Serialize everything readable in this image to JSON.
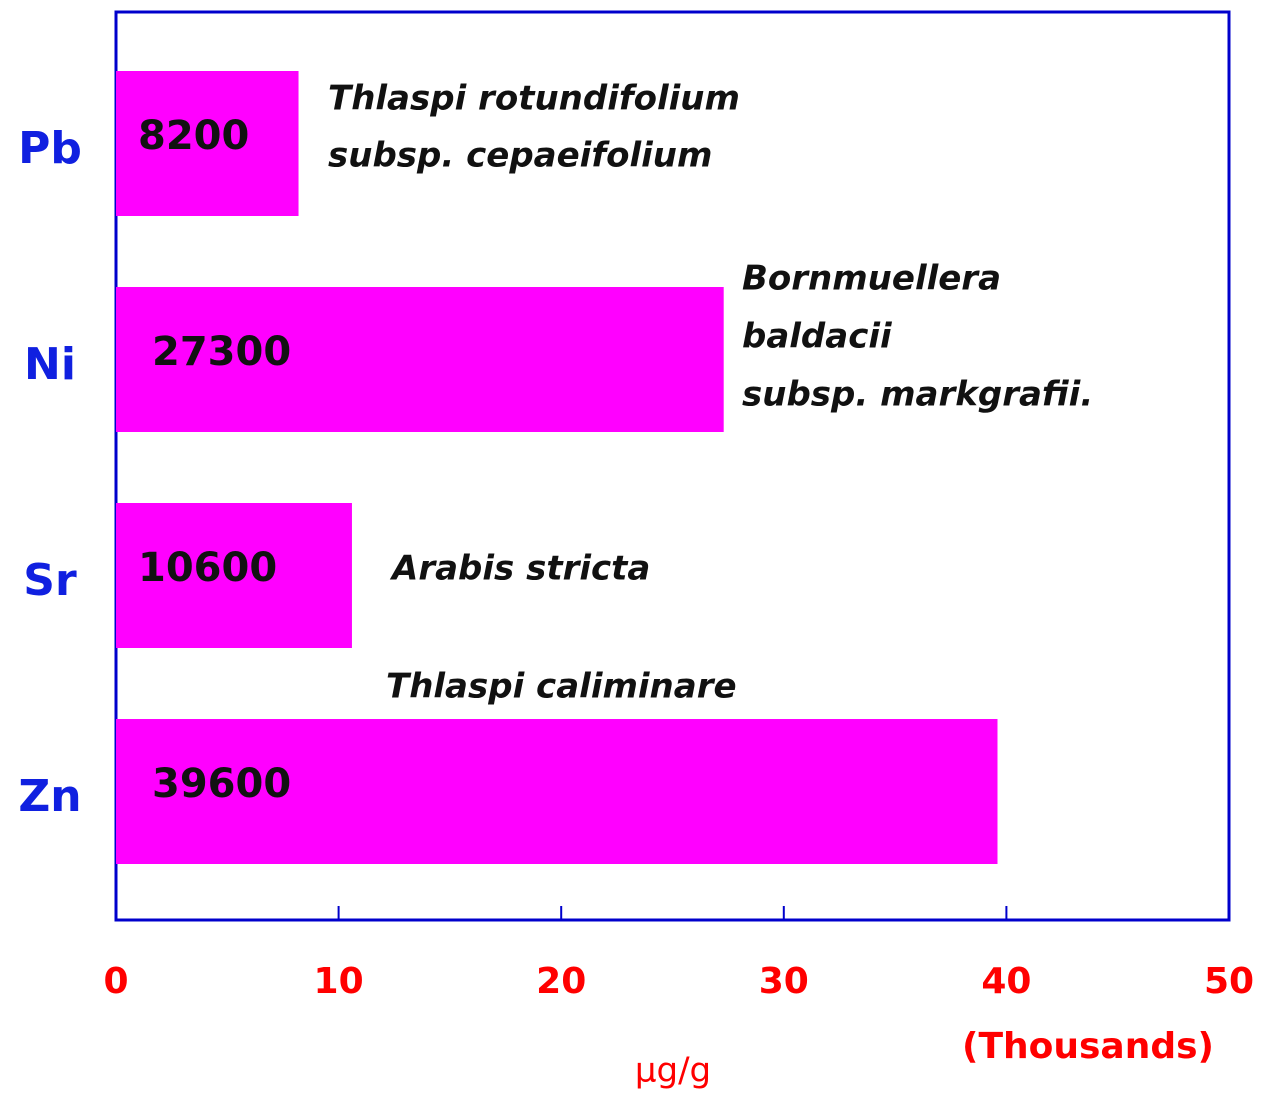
{
  "chart_data": {
    "type": "bar",
    "orientation": "horizontal",
    "categories": [
      "Pb",
      "Ni",
      "Sr",
      "Zn"
    ],
    "values": [
      8.2,
      27.3,
      10.6,
      39.6
    ],
    "value_labels": [
      "8200",
      "27300",
      "10600",
      "39600"
    ],
    "color": "#ff00ff",
    "xlim": [
      0,
      50
    ],
    "xticks": [
      0,
      10,
      20,
      30,
      40,
      50
    ],
    "x_label": "µg/g",
    "x_unit_label": "(Thousands)",
    "annotations": [
      {
        "lines": [
          "Thlaspi rotundifolium",
          "subsp. cepaeifolium"
        ]
      },
      {
        "lines": [
          "Bornmuellera",
          "baldacii",
          "subsp. markgrafii."
        ]
      },
      {
        "lines": [
          "Arabis stricta"
        ]
      },
      {
        "lines": [
          "Thlaspi caliminare"
        ]
      }
    ]
  }
}
